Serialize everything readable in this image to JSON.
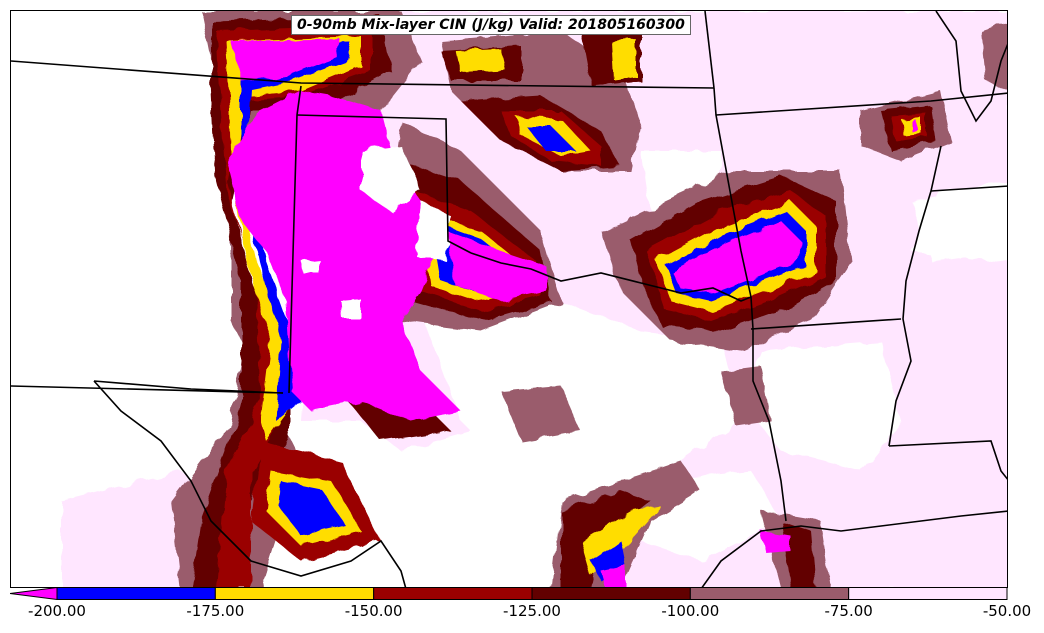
{
  "title": "0-90mb Mix-layer CIN (J/kg) Valid: 201805160300",
  "colorbar": {
    "bins": [
      {
        "from": -200,
        "to": -175,
        "color": "#0000ff"
      },
      {
        "from": -175,
        "to": -150,
        "color": "#ffdd00"
      },
      {
        "from": -150,
        "to": -125,
        "color": "#9a0000"
      },
      {
        "from": -125,
        "to": -100,
        "color": "#620000"
      },
      {
        "from": -100,
        "to": -75,
        "color": "#9a5c6c"
      },
      {
        "from": -75,
        "to": -50,
        "color": "#ffe6ff"
      }
    ],
    "under_color": "#ff00ff",
    "tick_labels": [
      "-200.00",
      "-175.00",
      "-150.00",
      "-125.00",
      "-100.00",
      "-75.00",
      "-50.00"
    ]
  },
  "map": {
    "field_colors": {
      "magenta": "#ff00ff",
      "blue": "#0000ff",
      "yellow": "#ffdd00",
      "red": "#9a0000",
      "darkred": "#620000",
      "mauve": "#9a5c6c",
      "lightpink": "#ffe6ff"
    },
    "boundary_color": "#000000"
  }
}
